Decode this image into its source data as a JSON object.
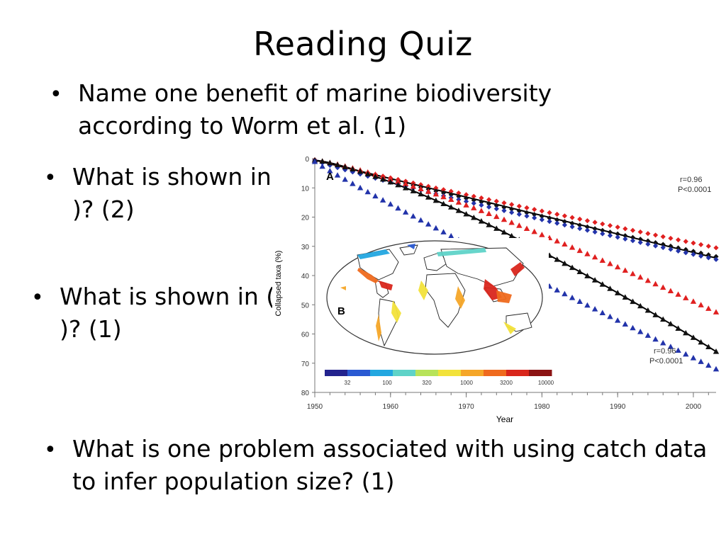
{
  "slide": {
    "title": "Reading Quiz",
    "questions": [
      "Name one benefit of marine biodiversity according to Worm et al. (1)",
      "What is shown in (A )? (2)",
      "What is shown in (B )? (1)",
      "What is one problem associated with using catch data to infer population size? (1)"
    ],
    "bullet_glyph": "•"
  },
  "chart_data": {
    "type": "scatter",
    "panel_label": "A",
    "xlabel": "Year",
    "ylabel": "Collapsed taxa (%)",
    "xlim": [
      1950,
      2003
    ],
    "ylim": [
      0,
      80
    ],
    "y_inverted": true,
    "x_ticks": [
      1950,
      1960,
      1970,
      1980,
      1990,
      2000
    ],
    "y_ticks": [
      0,
      10,
      20,
      30,
      40,
      50,
      60,
      70,
      80
    ],
    "annotations": [
      {
        "r": "r=0.96",
        "p": "P<0.0001"
      },
      {
        "r": "r=0.96",
        "p": "P<0.0001"
      }
    ],
    "series": [
      {
        "marker": "diamond",
        "color": "#e02020",
        "group": "upper",
        "shape": [
          0.4,
          30.5,
          0.95
        ]
      },
      {
        "marker": "diamond",
        "color": "#111111",
        "group": "upper",
        "shape": [
          0.5,
          33.5,
          0.95
        ]
      },
      {
        "marker": "diamond",
        "color": "#2233aa",
        "group": "upper",
        "shape": [
          0.5,
          34.5,
          0.9
        ]
      },
      {
        "marker": "triangle",
        "color": "#e02020",
        "group": "lower",
        "shape": [
          0.5,
          52.5,
          1.25
        ]
      },
      {
        "marker": "triangle",
        "color": "#111111",
        "group": "lower",
        "shape": [
          0.5,
          66,
          1.3
        ]
      },
      {
        "marker": "triangle",
        "color": "#2233aa",
        "group": "lower",
        "shape": [
          1,
          72,
          0.95
        ]
      }
    ],
    "fit_lines": [
      {
        "color": "#000000",
        "group": "upper",
        "shape": [
          0.5,
          34,
          1.0
        ]
      },
      {
        "color": "#000000",
        "group": "lower",
        "shape": [
          0.5,
          66,
          1.3
        ]
      }
    ],
    "inset": {
      "panel_label": "B",
      "colorbar_ticks": [
        "32",
        "100",
        "320",
        "1000",
        "3200",
        "10000"
      ],
      "colorbar_colors": [
        "#23238e",
        "#2a5ad2",
        "#23a7e0",
        "#5fd3c8",
        "#b8e35a",
        "#f2e23a",
        "#f5a628",
        "#ef6a1e",
        "#d9261c",
        "#8c1414"
      ],
      "ocean_color": "#ffffff",
      "land_color": "#ffffff"
    }
  }
}
